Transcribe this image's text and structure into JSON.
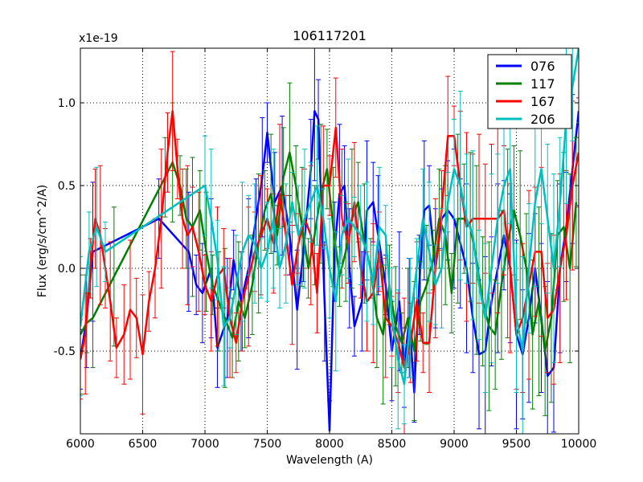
{
  "chart_data": {
    "type": "line",
    "title": "106117201",
    "xlabel": "Wavelength (A)",
    "ylabel": "Flux (erg/s/cm^2/A)",
    "offset_label": "x1e-19",
    "xlim": [
      6000,
      10000
    ],
    "ylim": [
      -1.0,
      1.33
    ],
    "xticks": [
      6000,
      6500,
      7000,
      7500,
      8000,
      8500,
      9000,
      9500,
      10000
    ],
    "yticks": [
      -0.5,
      0.0,
      0.5,
      1.0
    ],
    "ytick_labels": [
      "-0.5",
      "0.0",
      "0.5",
      "1.0"
    ],
    "grid": true,
    "legend_position": "top-right",
    "series": [
      {
        "name": "076",
        "color": "#0000ff",
        "x": [
          6000,
          6050,
          6100,
          6630,
          6870,
          6930,
          6980,
          7050,
          7100,
          7180,
          7230,
          7290,
          7350,
          7410,
          7460,
          7500,
          7560,
          7620,
          7680,
          7740,
          7790,
          7850,
          7880,
          7910,
          7960,
          8000,
          8040,
          8080,
          8120,
          8160,
          8200,
          8260,
          8300,
          8350,
          8390,
          8450,
          8500,
          8560,
          8600,
          8640,
          8680,
          8720,
          8760,
          8800,
          8850,
          8900,
          8950,
          9000,
          9050,
          9100,
          9150,
          9200,
          9250,
          9300,
          9350,
          9400,
          9450,
          9500,
          9550,
          9600,
          9650,
          9700,
          9750,
          9800,
          9850,
          9900,
          9950,
          10000
        ],
        "y": [
          -0.55,
          -0.3,
          0.1,
          0.3,
          0.1,
          -0.1,
          -0.15,
          0.0,
          -0.48,
          -0.3,
          0.05,
          -0.2,
          0.0,
          0.3,
          0.55,
          0.82,
          0.4,
          0.5,
          0.2,
          -0.25,
          0.1,
          0.6,
          0.95,
          0.9,
          -0.2,
          -0.98,
          0.1,
          0.45,
          0.5,
          0.0,
          -0.35,
          -0.2,
          0.35,
          0.4,
          0.2,
          -0.1,
          -0.5,
          -0.2,
          -0.6,
          -0.3,
          -0.75,
          -0.1,
          0.35,
          0.38,
          0.0,
          0.3,
          0.35,
          0.3,
          0.15,
          0.0,
          -0.3,
          -0.52,
          -0.5,
          -0.2,
          0.0,
          0.2,
          0.0,
          -0.4,
          -0.52,
          -0.3,
          0.0,
          -0.3,
          -0.65,
          -0.6,
          0.0,
          0.25,
          0.6,
          0.95
        ]
      },
      {
        "name": "117",
        "color": "#008000",
        "x": [
          6000,
          6050,
          6100,
          6270,
          6680,
          6740,
          6800,
          6850,
          6900,
          6960,
          7010,
          7060,
          7110,
          7160,
          7220,
          7270,
          7320,
          7380,
          7430,
          7480,
          7530,
          7580,
          7630,
          7680,
          7730,
          7780,
          7830,
          7880,
          7930,
          7980,
          8030,
          8080,
          8130,
          8180,
          8230,
          8280,
          8330,
          8380,
          8430,
          8480,
          8530,
          8580,
          8630,
          8680,
          8730,
          8780,
          8830,
          8880,
          8930,
          8980,
          9030,
          9080,
          9130,
          9180,
          9230,
          9280,
          9330,
          9380,
          9430,
          9480,
          9530,
          9580,
          9630,
          9680,
          9730,
          9780,
          9830,
          9880,
          9930,
          9980
        ],
        "y": [
          -0.4,
          -0.33,
          -0.3,
          -0.05,
          0.55,
          0.64,
          0.5,
          0.3,
          0.25,
          0.35,
          0.1,
          -0.1,
          -0.2,
          -0.3,
          -0.42,
          -0.2,
          -0.3,
          -0.1,
          0.15,
          0.35,
          0.45,
          0.2,
          0.55,
          0.7,
          0.5,
          0.25,
          0.0,
          0.2,
          0.45,
          0.6,
          0.25,
          -0.05,
          0.1,
          0.3,
          0.4,
          0.15,
          0.0,
          -0.3,
          -0.4,
          -0.1,
          -0.35,
          -0.45,
          -0.3,
          -0.5,
          -0.2,
          -0.1,
          0.05,
          0.3,
          0.2,
          -0.15,
          0.3,
          0.3,
          0.25,
          0.05,
          -0.2,
          -0.35,
          -0.4,
          -0.1,
          0.15,
          0.35,
          0.2,
          0.0,
          -0.4,
          -0.2,
          -0.5,
          -0.3,
          0.2,
          0.25,
          0.0,
          0.4
        ]
      },
      {
        "name": "167",
        "color": "#ff0000",
        "x": [
          6000,
          6040,
          6080,
          6120,
          6160,
          6200,
          6240,
          6290,
          6350,
          6400,
          6450,
          6500,
          6550,
          6600,
          6650,
          6700,
          6740,
          6780,
          6820,
          6860,
          6900,
          6950,
          7000,
          7050,
          7100,
          7150,
          7200,
          7250,
          7300,
          7350,
          7400,
          7450,
          7500,
          7550,
          7600,
          7650,
          7700,
          7750,
          7800,
          7850,
          7900,
          7950,
          8000,
          8050,
          8100,
          8150,
          8200,
          8250,
          8300,
          8350,
          8400,
          8450,
          8500,
          8550,
          8600,
          8650,
          8700,
          8750,
          8800,
          8850,
          8900,
          8950,
          9000,
          9050,
          9100,
          9150,
          9200,
          9250,
          9300,
          9350,
          9400,
          9450,
          9500,
          9550,
          9600,
          9650,
          9700,
          9750,
          9800,
          9850,
          9900,
          9950,
          10000
        ],
        "y": [
          -0.55,
          -0.4,
          0.0,
          0.3,
          0.2,
          0.0,
          -0.2,
          -0.48,
          -0.4,
          -0.25,
          -0.3,
          -0.52,
          -0.2,
          0.0,
          0.3,
          0.7,
          0.95,
          0.6,
          0.3,
          0.2,
          0.25,
          0.1,
          -0.1,
          -0.2,
          -0.05,
          0.0,
          -0.3,
          -0.45,
          -0.2,
          -0.05,
          0.1,
          0.2,
          0.3,
          0.15,
          0.45,
          0.2,
          -0.1,
          0.15,
          0.3,
          0.2,
          -0.15,
          0.5,
          0.5,
          0.85,
          0.3,
          0.15,
          0.4,
          0.0,
          -0.2,
          -0.15,
          0.1,
          -0.3,
          -0.35,
          -0.45,
          -0.6,
          -0.45,
          -0.2,
          -0.45,
          -0.45,
          0.0,
          0.35,
          0.8,
          0.8,
          0.5,
          0.25,
          0.3,
          0.3,
          0.3,
          0.3,
          0.3,
          0.35,
          0.0,
          -0.4,
          -0.3,
          -0.1,
          0.1,
          0.1,
          -0.3,
          -0.25,
          0.0,
          0.2,
          0.5,
          0.7
        ]
      },
      {
        "name": "206",
        "color": "#00bfbf",
        "x": [
          6000,
          6070,
          6130,
          6200,
          7000,
          7050,
          7100,
          7150,
          7200,
          7250,
          7300,
          7350,
          7400,
          7450,
          7500,
          7550,
          7600,
          7650,
          7700,
          7750,
          7800,
          7850,
          7900,
          7950,
          8000,
          8050,
          8100,
          8150,
          8200,
          8250,
          8300,
          8350,
          8400,
          8450,
          8500,
          8550,
          8600,
          8650,
          8700,
          8750,
          8800,
          8850,
          8900,
          8950,
          9000,
          9050,
          9100,
          9150,
          9200,
          9250,
          9300,
          9350,
          9400,
          9450,
          9500,
          9550,
          9600,
          9650,
          9700,
          9750,
          9800,
          9850,
          9900,
          9950,
          10000
        ],
        "y": [
          -0.35,
          0.1,
          0.25,
          0.1,
          0.5,
          0.3,
          0.05,
          -0.35,
          -0.3,
          -0.1,
          0.1,
          0.2,
          0.15,
          0.0,
          0.1,
          0.3,
          0.0,
          0.15,
          0.4,
          0.2,
          0.3,
          0.4,
          0.5,
          0.3,
          0.0,
          -0.2,
          0.2,
          0.3,
          0.25,
          0.2,
          0.1,
          -0.1,
          0.25,
          0.2,
          -0.3,
          -0.55,
          -0.7,
          -0.3,
          0.0,
          0.3,
          0.1,
          -0.1,
          0.0,
          0.4,
          0.6,
          0.5,
          0.3,
          0.2,
          -0.1,
          -0.3,
          0.0,
          0.3,
          0.5,
          0.6,
          -0.3,
          -0.5,
          0.0,
          0.4,
          0.6,
          0.3,
          0.0,
          0.4,
          0.9,
          1.1,
          1.33
        ]
      }
    ]
  }
}
